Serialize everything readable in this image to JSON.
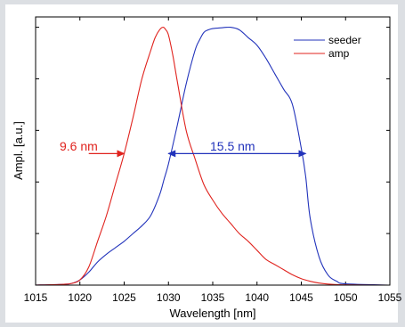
{
  "chart_data": {
    "type": "line",
    "title": "",
    "xlabel": "Wavelength [nm]",
    "ylabel": "Ampl. [a.u.]",
    "xlim": [
      1015,
      1055
    ],
    "ylim": [
      0,
      1.04
    ],
    "x_ticks": [
      1015,
      1020,
      1025,
      1030,
      1035,
      1040,
      1045,
      1050,
      1055
    ],
    "y_ticks": [
      0,
      0.2,
      0.4,
      0.6,
      0.8,
      1.0
    ],
    "y_tick_labels_visible": false,
    "grid": false,
    "legend_placement": "top-right",
    "series": [
      {
        "name": "seeder",
        "color": "#2233bb",
        "x": [
          1015,
          1018,
          1019,
          1020,
          1021,
          1022,
          1023,
          1024,
          1025,
          1026,
          1027,
          1028,
          1029,
          1029.5,
          1030,
          1031,
          1032,
          1033,
          1033.5,
          1034,
          1034.5,
          1035,
          1036,
          1037,
          1038,
          1039,
          1040,
          1041,
          1042,
          1043,
          1044,
          1045,
          1045.5,
          1046,
          1047,
          1048,
          1049,
          1050,
          1055
        ],
        "y": [
          0,
          0.003,
          0.006,
          0.02,
          0.05,
          0.09,
          0.12,
          0.145,
          0.17,
          0.2,
          0.23,
          0.27,
          0.35,
          0.41,
          0.47,
          0.62,
          0.78,
          0.91,
          0.95,
          0.98,
          0.99,
          0.995,
          0.998,
          1.0,
          0.99,
          0.96,
          0.93,
          0.88,
          0.82,
          0.76,
          0.7,
          0.53,
          0.42,
          0.26,
          0.11,
          0.04,
          0.015,
          0.005,
          0
        ]
      },
      {
        "name": "amp",
        "color": "#e0231e",
        "x": [
          1015,
          1018,
          1019,
          1020,
          1021,
          1022,
          1023,
          1024,
          1025,
          1026,
          1027,
          1028,
          1028.5,
          1029,
          1029.4,
          1029.7,
          1030,
          1030.5,
          1031,
          1032,
          1033,
          1034,
          1035,
          1036,
          1037,
          1038,
          1039,
          1040,
          1041,
          1042,
          1043,
          1044,
          1045,
          1046,
          1047,
          1048,
          1050,
          1055
        ],
        "y": [
          0,
          0.003,
          0.006,
          0.02,
          0.07,
          0.17,
          0.27,
          0.39,
          0.51,
          0.65,
          0.8,
          0.91,
          0.96,
          0.99,
          1.0,
          0.99,
          0.97,
          0.89,
          0.79,
          0.6,
          0.49,
          0.39,
          0.33,
          0.28,
          0.24,
          0.2,
          0.17,
          0.135,
          0.1,
          0.08,
          0.06,
          0.04,
          0.025,
          0.015,
          0.008,
          0.004,
          0.001,
          0
        ]
      }
    ],
    "annotations": [
      {
        "label": "9.6 nm",
        "color": "#e0231e",
        "y_level": 0.51,
        "arrow_from_x": 1021,
        "arrow_to_x": 1025
      },
      {
        "label": "15.5 nm",
        "color": "#2233bb",
        "y_level": 0.51,
        "arrow_from_x": 1030,
        "arrow_to_x": 1045.5
      }
    ]
  }
}
